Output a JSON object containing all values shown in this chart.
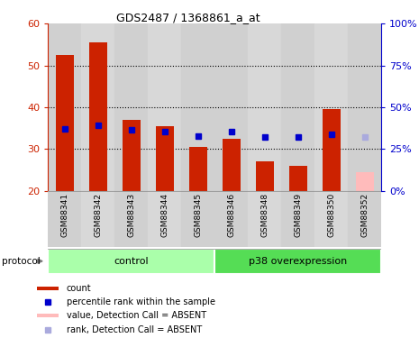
{
  "title": "GDS2487 / 1368861_a_at",
  "samples": [
    "GSM88341",
    "GSM88342",
    "GSM88343",
    "GSM88344",
    "GSM88345",
    "GSM88346",
    "GSM88348",
    "GSM88349",
    "GSM88350",
    "GSM88352"
  ],
  "bar_values": [
    52.5,
    55.5,
    37.0,
    35.5,
    30.5,
    32.5,
    27.0,
    26.0,
    39.5,
    24.5
  ],
  "bar_colors": [
    "#cc2200",
    "#cc2200",
    "#cc2200",
    "#cc2200",
    "#cc2200",
    "#cc2200",
    "#cc2200",
    "#cc2200",
    "#cc2200",
    "#ffbbbb"
  ],
  "rank_values": [
    37.0,
    39.0,
    36.5,
    35.5,
    33.0,
    35.5,
    32.5,
    32.5,
    34.0,
    32.0
  ],
  "rank_colors": [
    "#0000cc",
    "#0000cc",
    "#0000cc",
    "#0000cc",
    "#0000cc",
    "#0000cc",
    "#0000cc",
    "#0000cc",
    "#0000cc",
    "#aaaadd"
  ],
  "ylim_left": [
    20,
    60
  ],
  "ylim_right": [
    0,
    100
  ],
  "yticks_left": [
    20,
    30,
    40,
    50,
    60
  ],
  "yticks_right": [
    0,
    25,
    50,
    75,
    100
  ],
  "ytick_labels_right": [
    "0%",
    "25%",
    "50%",
    "75%",
    "100%"
  ],
  "grid_lines": [
    30,
    40,
    50
  ],
  "groups": [
    {
      "label": "control",
      "cols": [
        0,
        1,
        2,
        3,
        4
      ],
      "color": "#aaffaa",
      "dark_color": "#55dd55"
    },
    {
      "label": "p38 overexpression",
      "cols": [
        5,
        6,
        7,
        8,
        9
      ],
      "color": "#55dd55",
      "dark_color": "#33bb33"
    }
  ],
  "protocol_label": "protocol",
  "legend_items": [
    {
      "label": "count",
      "color": "#cc2200",
      "is_rank": false
    },
    {
      "label": "percentile rank within the sample",
      "color": "#0000cc",
      "is_rank": true
    },
    {
      "label": "value, Detection Call = ABSENT",
      "color": "#ffbbbb",
      "is_rank": false
    },
    {
      "label": "rank, Detection Call = ABSENT",
      "color": "#aaaadd",
      "is_rank": true
    }
  ],
  "bar_width": 0.55,
  "rank_marker_size": 5,
  "left_tick_color": "#cc2200",
  "right_tick_color": "#0000cc",
  "col_colors": [
    "#d0d0d0",
    "#d8d8d8",
    "#d0d0d0",
    "#d8d8d8",
    "#d0d0d0",
    "#d0d0d0",
    "#d8d8d8",
    "#d0d0d0",
    "#d8d8d8",
    "#d0d0d0"
  ]
}
